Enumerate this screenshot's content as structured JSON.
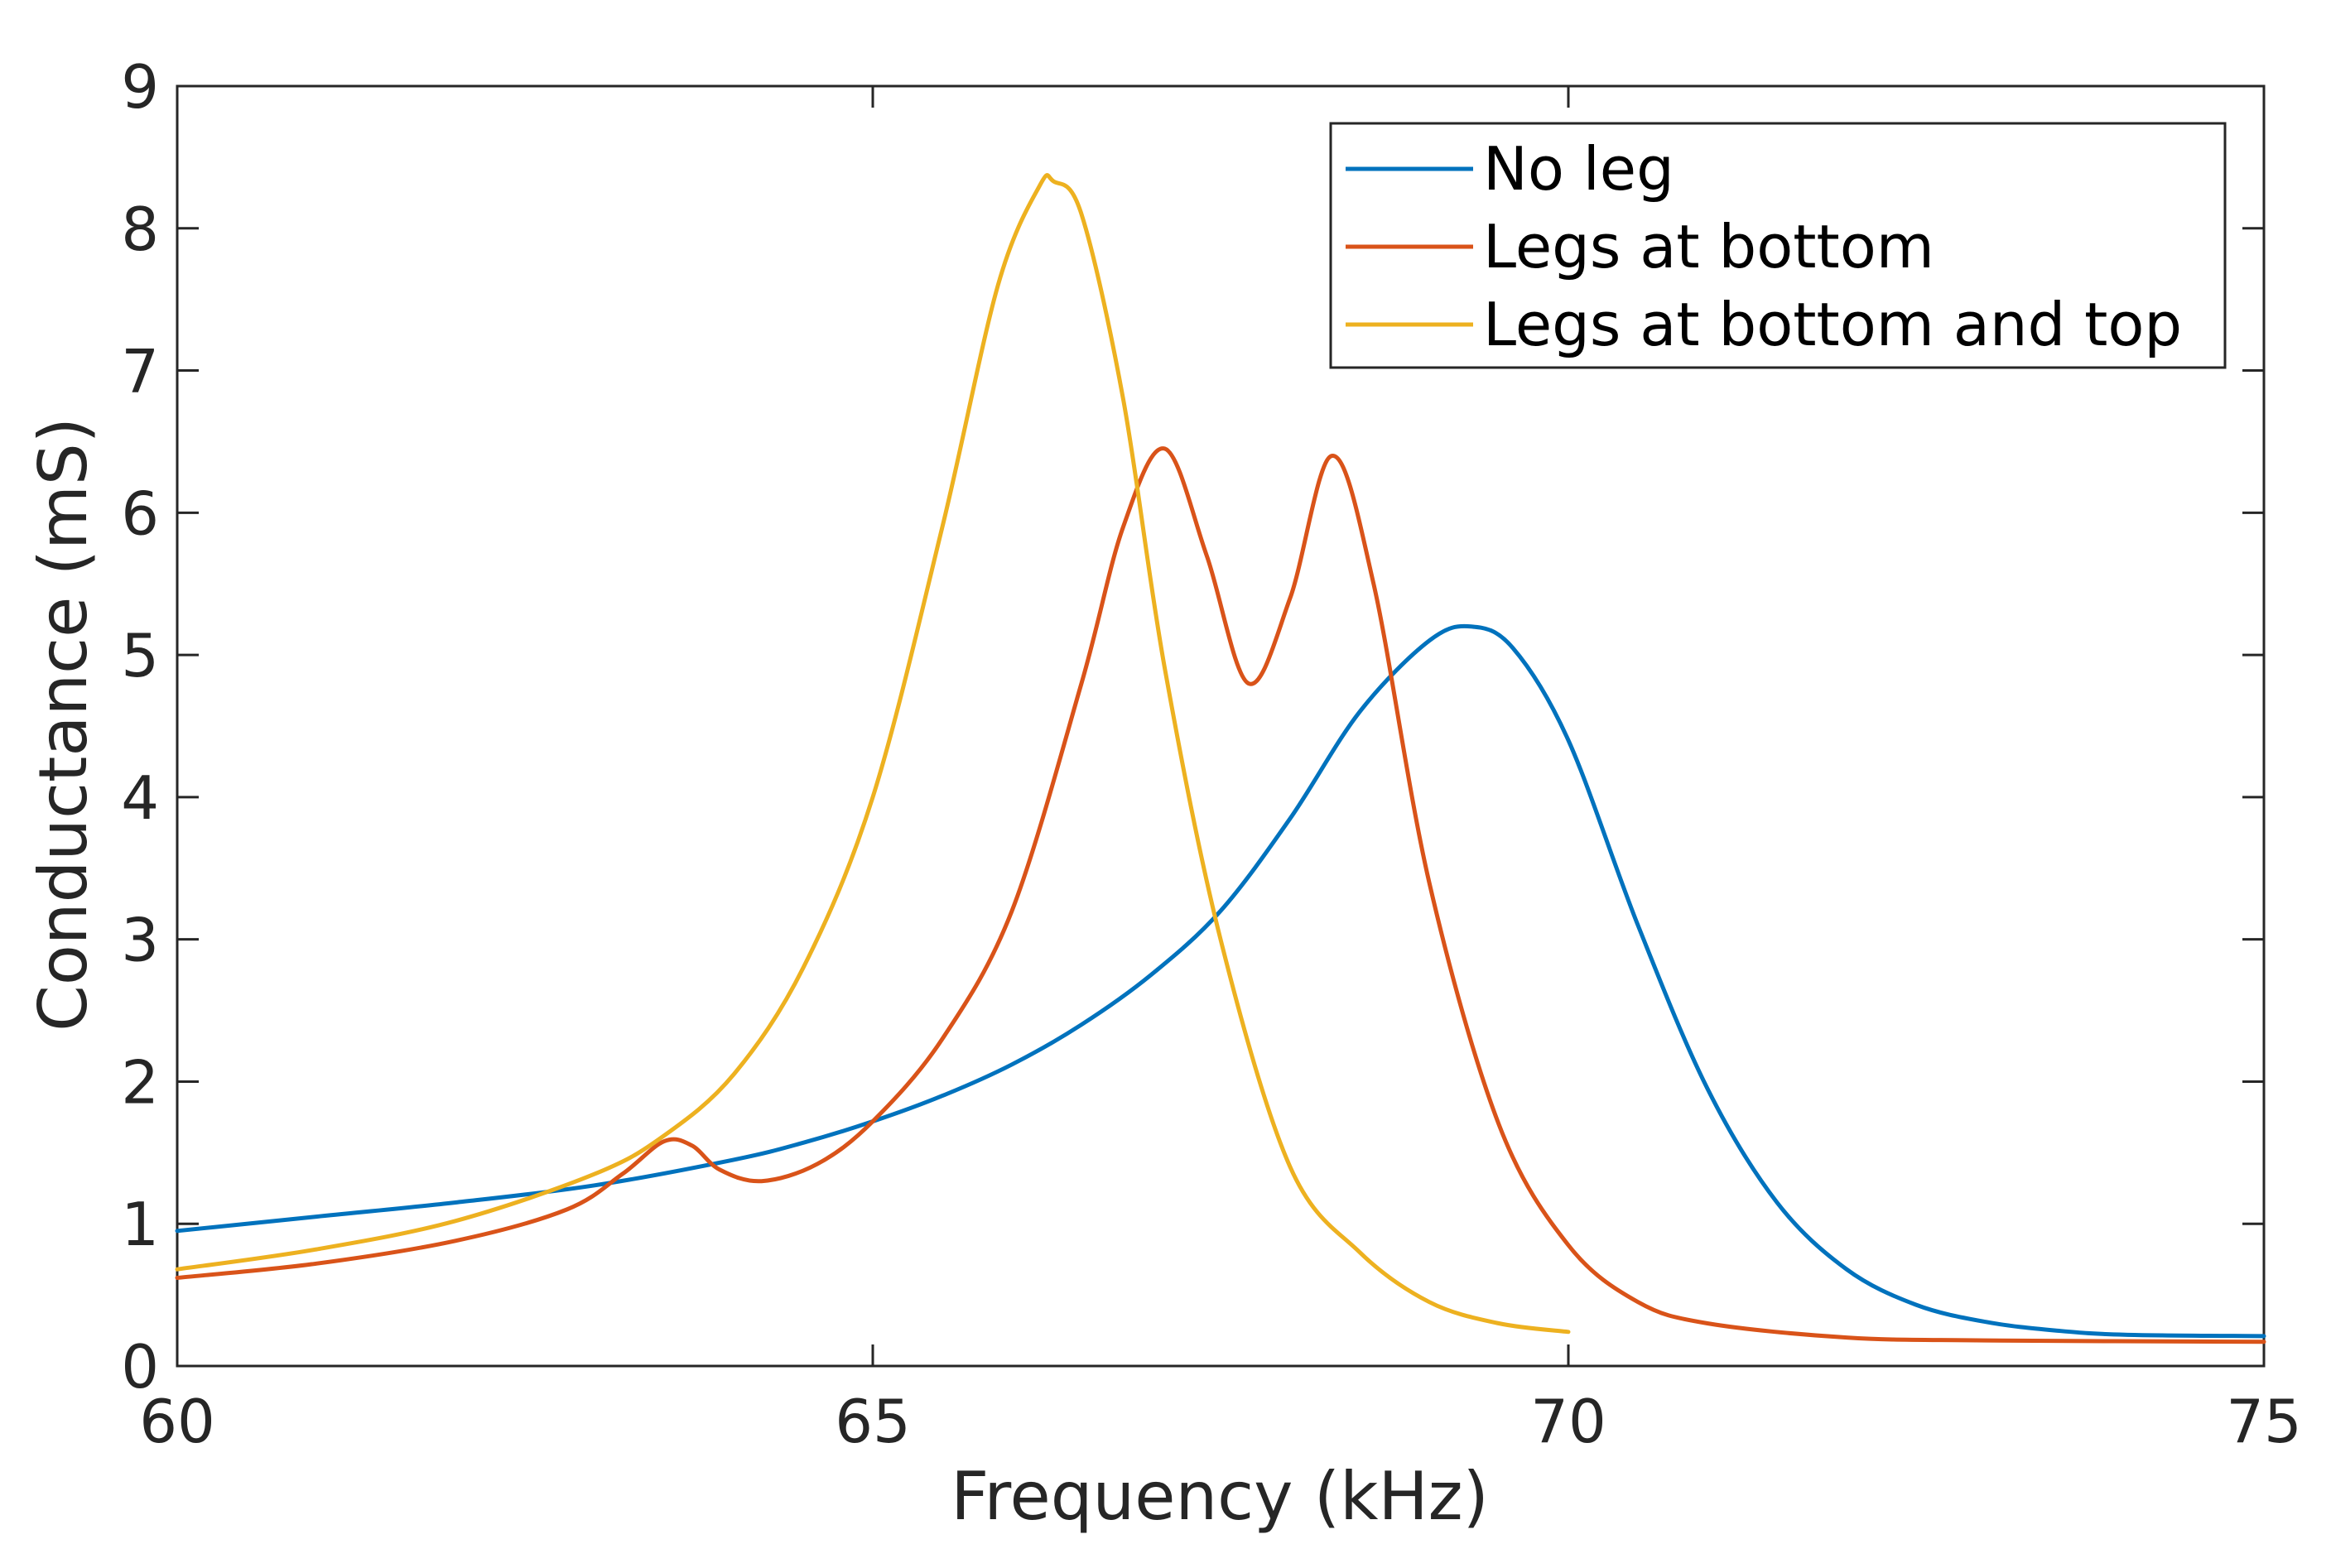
{
  "chart_data": {
    "type": "line",
    "title": "",
    "xlabel": "Frequency (kHz)",
    "ylabel": "Conductance (mS)",
    "xlim": [
      60,
      75
    ],
    "ylim": [
      0,
      9
    ],
    "xticks": [
      "60",
      "65",
      "70",
      "75"
    ],
    "yticks": [
      "0",
      "1",
      "2",
      "3",
      "4",
      "5",
      "6",
      "7",
      "8",
      "9"
    ],
    "grid": false,
    "legend_position": "top-right",
    "series": [
      {
        "name": "No leg",
        "color": "#0072BD",
        "x": [
          60,
          61,
          62,
          63,
          64,
          64.5,
          65,
          65.5,
          66,
          66.5,
          67,
          67.5,
          68,
          68.5,
          69,
          69.3,
          69.6,
          70,
          70.5,
          71,
          71.5,
          72,
          72.5,
          73,
          73.5,
          74,
          75
        ],
        "values": [
          0.95,
          1.05,
          1.15,
          1.27,
          1.45,
          1.57,
          1.72,
          1.9,
          2.12,
          2.4,
          2.75,
          3.2,
          3.85,
          4.6,
          5.1,
          5.2,
          5.05,
          4.4,
          3.1,
          1.95,
          1.15,
          0.68,
          0.43,
          0.31,
          0.25,
          0.22,
          0.21
        ]
      },
      {
        "name": "Legs at bottom",
        "color": "#D95319",
        "x": [
          60,
          61,
          62,
          62.8,
          63.2,
          63.5,
          63.7,
          63.9,
          64.2,
          64.6,
          65,
          65.5,
          66,
          66.5,
          66.8,
          67.1,
          67.4,
          67.7,
          68.0,
          68.3,
          68.6,
          69,
          69.5,
          70,
          70.5,
          71,
          72,
          73,
          75
        ],
        "values": [
          0.62,
          0.72,
          0.88,
          1.1,
          1.35,
          1.58,
          1.55,
          1.38,
          1.3,
          1.42,
          1.72,
          2.3,
          3.2,
          4.8,
          5.9,
          6.45,
          5.7,
          4.8,
          5.4,
          6.4,
          5.5,
          3.4,
          1.7,
          0.85,
          0.45,
          0.3,
          0.2,
          0.18,
          0.17
        ]
      },
      {
        "name": "Legs at bottom and top",
        "color": "#EDB120",
        "x": [
          60,
          61,
          62,
          63,
          63.5,
          64,
          64.5,
          65,
          65.5,
          65.9,
          66.2,
          66.3,
          66.5,
          66.8,
          67.1,
          67.5,
          68,
          68.5,
          69,
          69.5,
          70
        ],
        "values": [
          0.68,
          0.82,
          1.02,
          1.35,
          1.62,
          2.05,
          2.8,
          4.0,
          5.9,
          7.6,
          8.3,
          8.33,
          8.1,
          6.8,
          4.9,
          3.0,
          1.4,
          0.8,
          0.45,
          0.3,
          0.24
        ]
      }
    ]
  }
}
